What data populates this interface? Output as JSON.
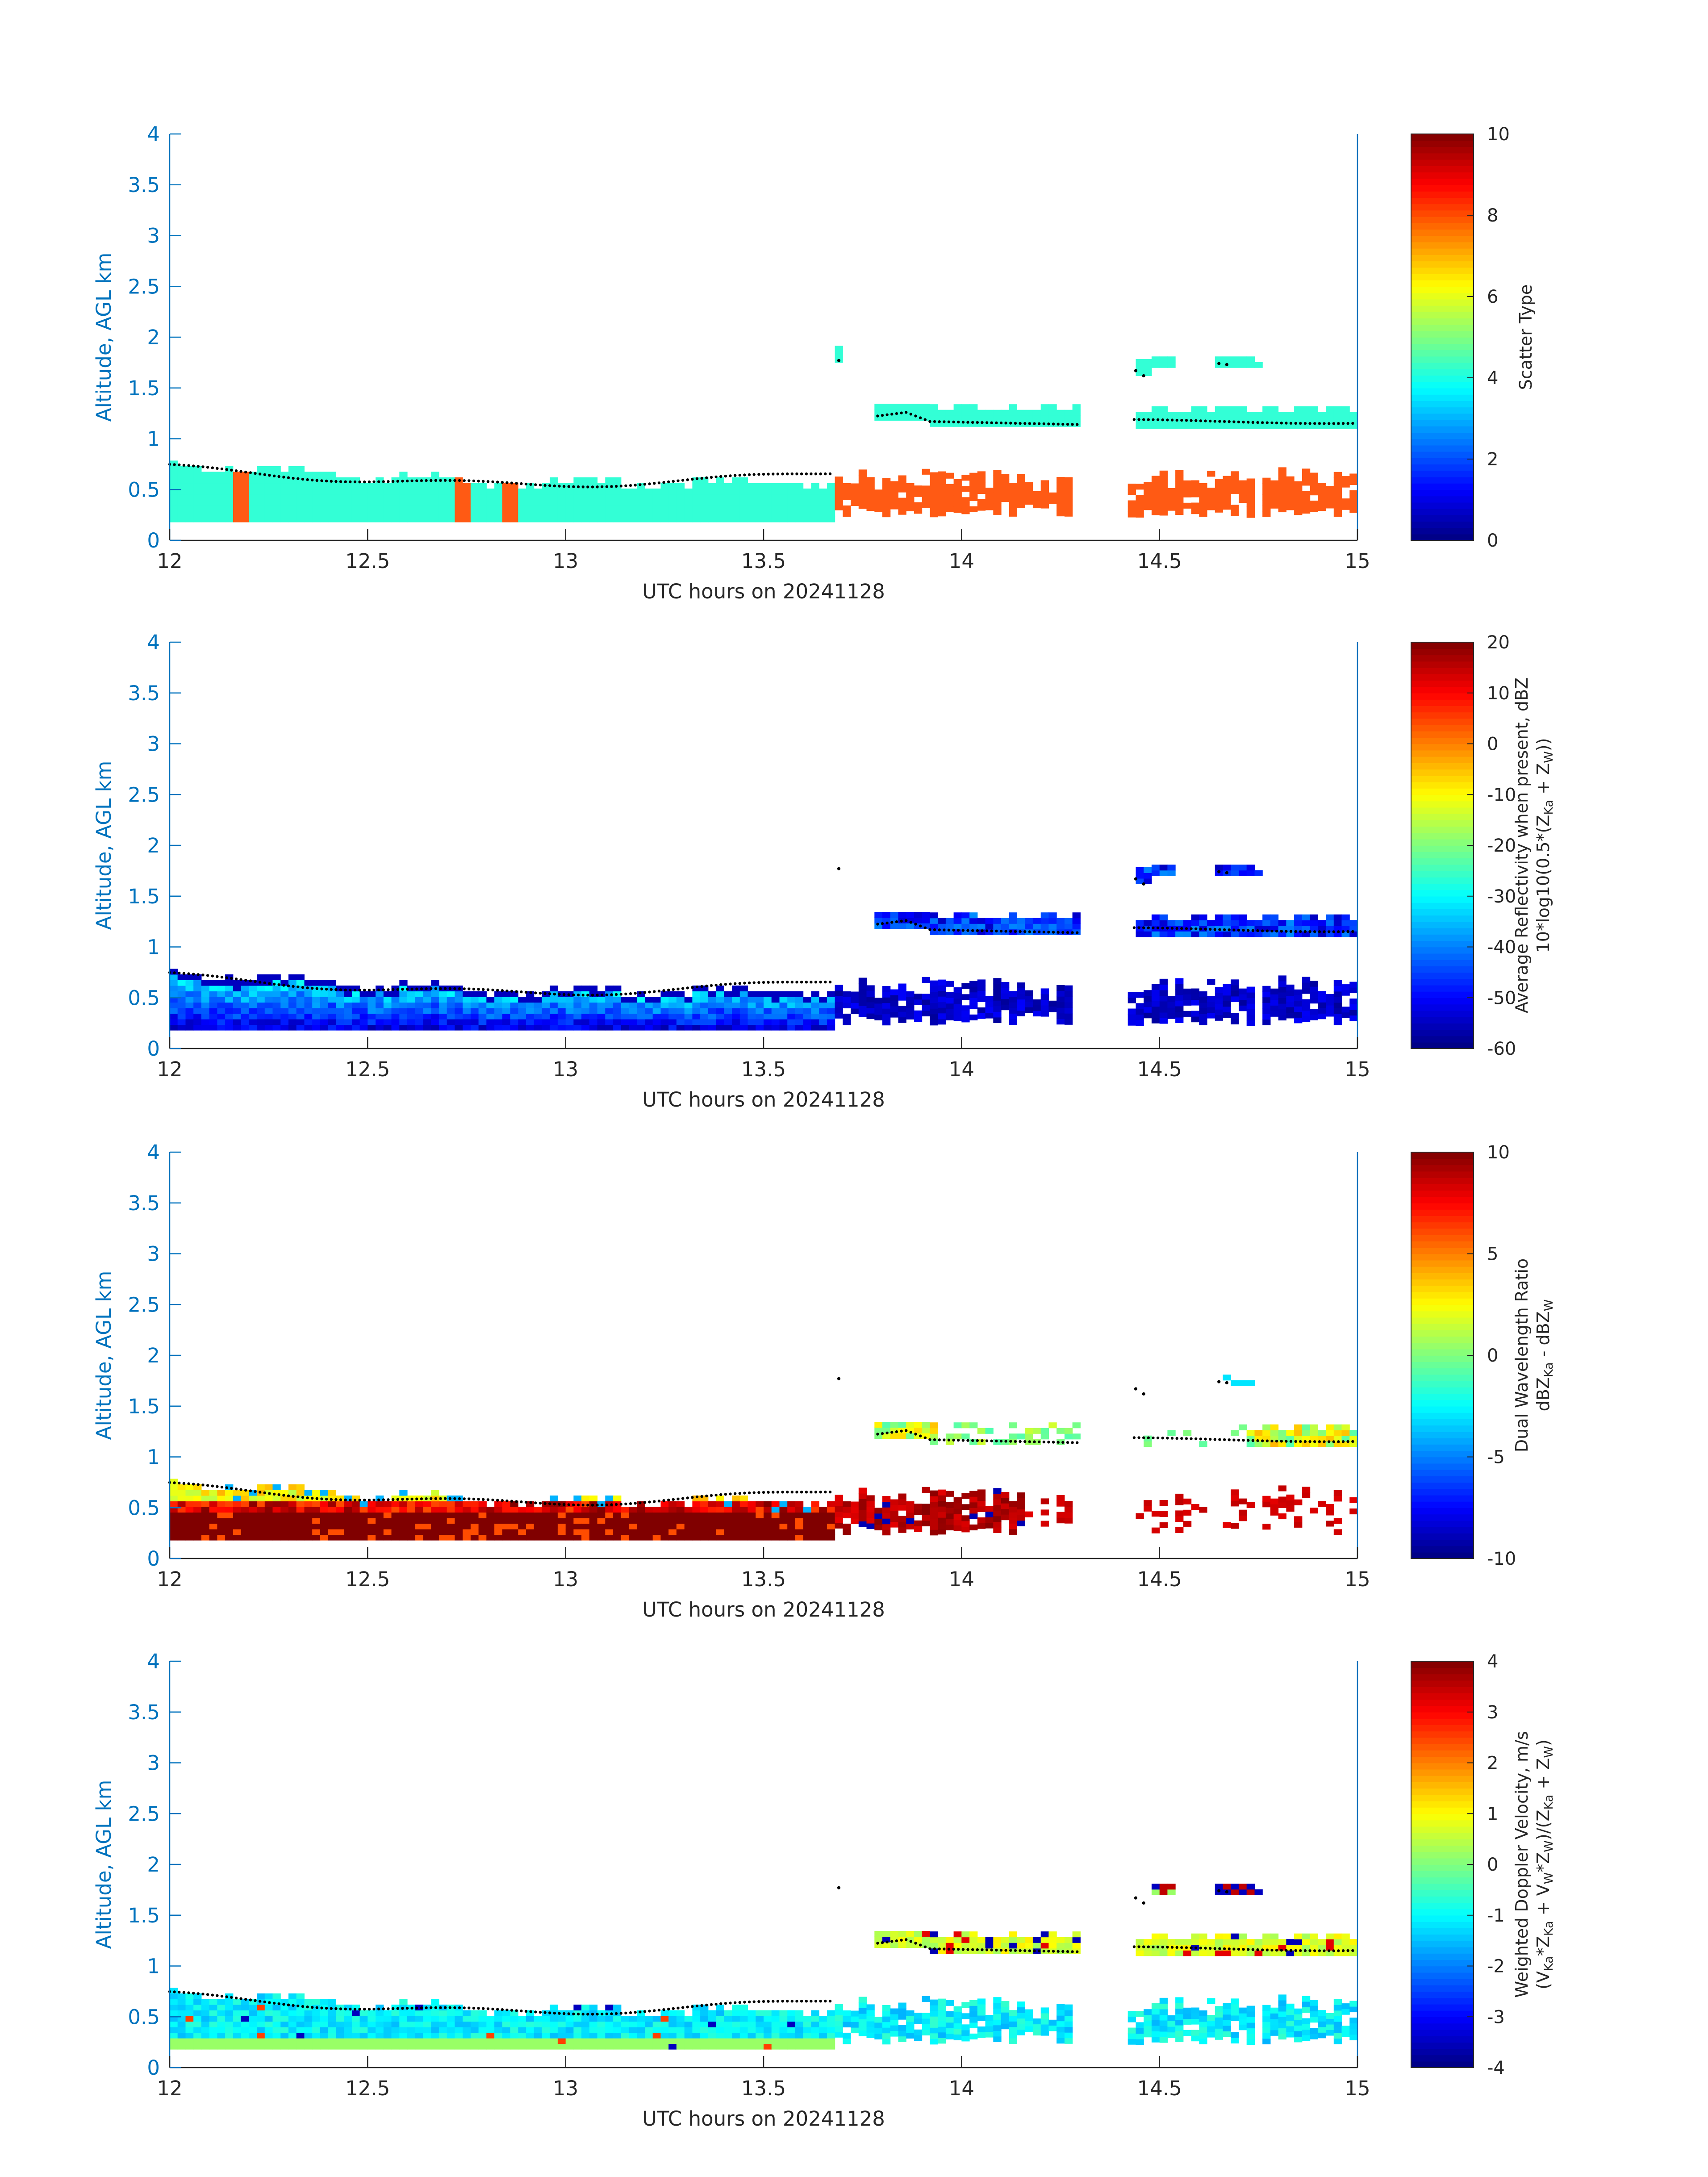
{
  "colors": {
    "axis_blue": "#0072bd",
    "text_dark": "#262626",
    "scatter_cyan": "#33ffd6",
    "scatter_orange": "#ff5a14",
    "dots": "#000000"
  },
  "chart_data": [
    {
      "type": "heatmap",
      "xlabel": "UTC hours on 20241128",
      "ylabel": "Altitude, AGL km",
      "xlim": [
        12,
        15
      ],
      "ylim": [
        0,
        4
      ],
      "xticks": [
        "12",
        "12.5",
        "13",
        "13.5",
        "14",
        "14.5",
        "15"
      ],
      "yticks": [
        "0",
        "0.5",
        "1",
        "1.5",
        "2",
        "2.5",
        "3",
        "3.5",
        "4"
      ],
      "colorbar": {
        "label_lines": [
          "Scatter Type"
        ],
        "range": [
          0,
          10
        ],
        "ticks": [
          "0",
          "2",
          "4",
          "6",
          "8",
          "10"
        ]
      },
      "description_series": [
        {
          "value": 3.5,
          "t_start": 12.0,
          "t_end": 13.68,
          "z_bottom": 0.18,
          "z_top_min": 0.6,
          "z_top_max": 0.85
        },
        {
          "value": 8.5,
          "t_start": 13.68,
          "t_end": 15.0,
          "z_bottom": 0.25,
          "z_top_min": 0.45,
          "z_top_max": 0.65
        },
        {
          "value": 3.5,
          "t_start": 13.78,
          "t_end": 14.3,
          "z_bottom": 1.1,
          "z_top_min": 1.2,
          "z_top_max": 1.35
        },
        {
          "value": 3.5,
          "t_start": 14.43,
          "t_end": 15.0,
          "z_bottom": 1.1,
          "z_top_min": 1.2,
          "z_top_max": 1.3
        }
      ]
    },
    {
      "type": "heatmap",
      "xlabel": "UTC hours on 20241128",
      "ylabel": "Altitude, AGL km",
      "xlim": [
        12,
        15
      ],
      "ylim": [
        0,
        4
      ],
      "xticks": [
        "12",
        "12.5",
        "13",
        "13.5",
        "14",
        "14.5",
        "15"
      ],
      "yticks": [
        "0",
        "0.5",
        "1",
        "1.5",
        "2",
        "2.5",
        "3",
        "3.5",
        "4"
      ],
      "colorbar": {
        "label_lines": [
          "Average Reflectivity when present, dBZ",
          "10*log10(0.5*(Z_Ka + Z_W))"
        ],
        "range": [
          -60,
          20
        ],
        "ticks": [
          "-60",
          "-50",
          "-40",
          "-30",
          "-20",
          "-10",
          "0",
          "10",
          "20"
        ]
      }
    },
    {
      "type": "heatmap",
      "xlabel": "UTC hours on 20241128",
      "ylabel": "Altitude, AGL km",
      "xlim": [
        12,
        15
      ],
      "ylim": [
        0,
        4
      ],
      "xticks": [
        "12",
        "12.5",
        "13",
        "13.5",
        "14",
        "14.5",
        "15"
      ],
      "yticks": [
        "0",
        "0.5",
        "1",
        "1.5",
        "2",
        "2.5",
        "3",
        "3.5",
        "4"
      ],
      "colorbar": {
        "label_lines": [
          "Dual Wavelength Ratio",
          "dBZ_Ka - dBZ_W"
        ],
        "range": [
          -10,
          10
        ],
        "ticks": [
          "-10",
          "-5",
          "0",
          "5",
          "10"
        ]
      }
    },
    {
      "type": "heatmap",
      "xlabel": "UTC hours on 20241128",
      "ylabel": "Altitude, AGL km",
      "xlim": [
        12,
        15
      ],
      "ylim": [
        0,
        4
      ],
      "xticks": [
        "12",
        "12.5",
        "13",
        "13.5",
        "14",
        "14.5",
        "15"
      ],
      "yticks": [
        "0",
        "0.5",
        "1",
        "1.5",
        "2",
        "2.5",
        "3",
        "3.5",
        "4"
      ],
      "colorbar": {
        "label_lines": [
          "Weighted Doppler Velocity, m/s",
          "(V_Ka*Z_Ka + V_W*Z_W)/(Z_Ka + Z_W)"
        ],
        "range": [
          -4,
          4
        ],
        "ticks": [
          "-4",
          "-3",
          "-2",
          "-1",
          "0",
          "1",
          "2",
          "3",
          "4"
        ]
      }
    }
  ]
}
